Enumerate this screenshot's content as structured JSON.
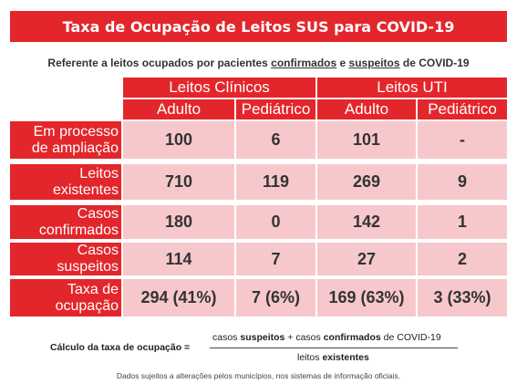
{
  "title": "Taxa de Ocupação de Leitos SUS para COVID-19",
  "subtitle": {
    "part1": "Referente a leitos ocupados por pacientes ",
    "confirmados": "confirmados",
    "e": " e ",
    "suspeitos": "suspeitos",
    "part2": " de COVID-19"
  },
  "table": {
    "groups": [
      "Leitos Clínicos",
      "Leitos UTI"
    ],
    "columns": [
      "Adulto",
      "Pediátrico",
      "Adulto",
      "Pediátrico"
    ],
    "rows": [
      {
        "label": "Em processo\nde ampliação",
        "values": [
          "100",
          "6",
          "101",
          "-"
        ]
      },
      {
        "label": "Leitos\nexistentes",
        "values": [
          "710",
          "119",
          "269",
          "9"
        ]
      },
      {
        "label": "Casos\nconfirmados",
        "values": [
          "180",
          "0",
          "142",
          "1"
        ]
      },
      {
        "label": "Casos\nsuspeitos",
        "values": [
          "114",
          "7",
          "27",
          "2"
        ]
      },
      {
        "label": "Taxa de\nocupação",
        "values": [
          "294 (41%)",
          "7 (6%)",
          "169 (63%)",
          "3 (33%)"
        ]
      }
    ]
  },
  "formula": {
    "label": "Cálculo da taxa de ocupação =",
    "num_pre": "casos ",
    "num_b1": "suspeitos",
    "num_mid": " + casos ",
    "num_b2": "confirmados",
    "num_post": " de COVID-19",
    "den_pre": "leitos ",
    "den_b": "existentes"
  },
  "footnote": "Dados sujeitos a alterações pelos municípios, nos sistemas de informação oficiais.",
  "colors": {
    "accent": "#e3262b",
    "cell": "#f7c8cb"
  }
}
